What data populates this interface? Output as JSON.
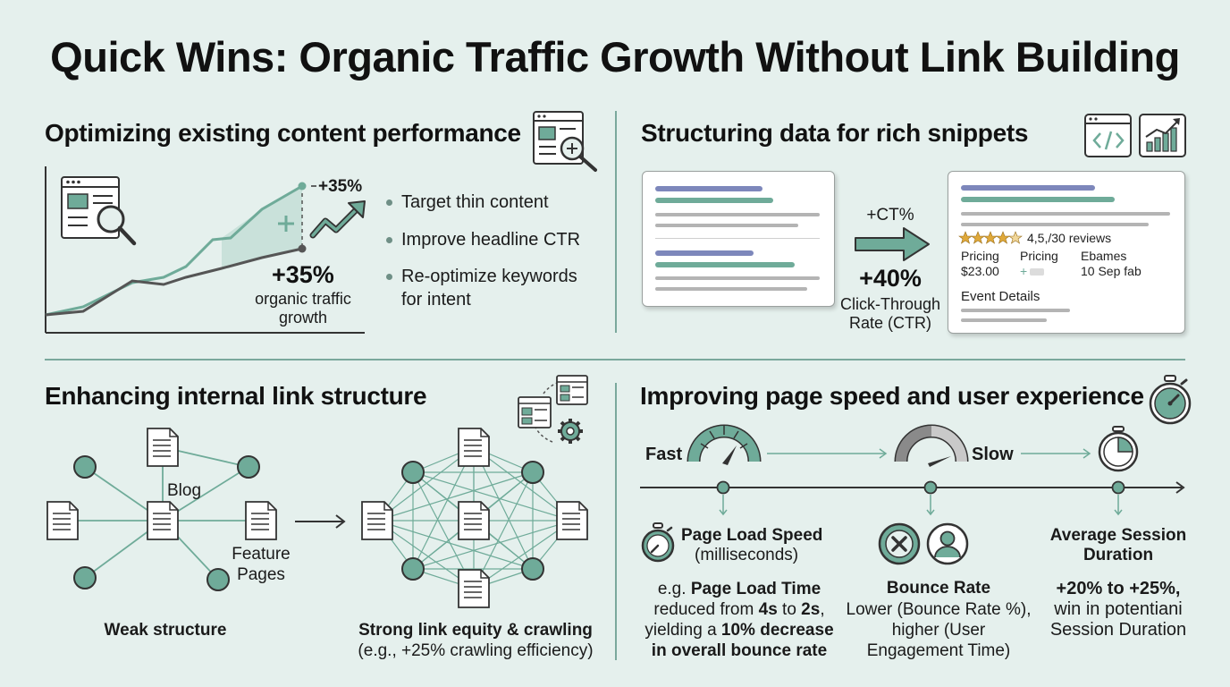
{
  "title": "Quick Wins: Organic Traffic Growth Without Link Building",
  "colors": {
    "accent": "#6fab99",
    "accent_dark": "#5c9485",
    "ink": "#3a3a3a",
    "background": "#e5f0ed"
  },
  "optimizing": {
    "heading": "Optimizing existing content performance",
    "icons": [
      "browser-magnifier-icon",
      "page-magnifier-icon",
      "trend-arrow-icon"
    ],
    "chart_tag": "+35%",
    "stat_value": "+35%",
    "stat_label_1": "organic traffic",
    "stat_label_2": "growth",
    "bullets": [
      "Target thin content",
      "Improve headline CTR",
      "Re-optimize keywords",
      "for intent"
    ]
  },
  "structuring": {
    "heading": "Structuring data for rich snippets",
    "icons": [
      "code-window-icon",
      "bar-chart-icon"
    ],
    "arrow_label": "+CT%",
    "stat_value": "+40%",
    "stat_label_1": "Click-Through",
    "stat_label_2": "Rate (CTR)",
    "rating_text": "4,5,/30 reviews",
    "col1_label": "Pricing",
    "col1_value": "$23.00",
    "col2_label": "Pricing",
    "col2_value": "+",
    "col3_label": "Ebames",
    "col3_value": "10 Sep fab",
    "event_label": "Event Details"
  },
  "internal_links": {
    "heading": "Enhancing internal link structure",
    "label_blog": "Blog",
    "label_feature_1": "Feature",
    "label_feature_2": "Pages",
    "weak_label": "Weak structure",
    "strong_label_1": "Strong link equity & crawling",
    "strong_label_2": "(e.g., +25% crawling efficiency)"
  },
  "page_speed": {
    "heading": "Improving page speed and user experience",
    "fast_label": "Fast",
    "slow_label": "Slow",
    "metric1_title": "Page Load Speed",
    "metric1_sub": "(milliseconds)",
    "metric1_line1_prefix": "e.g. ",
    "metric1_line1_bold": "Page Load Time",
    "metric1_line2_a": "reduced from ",
    "metric1_line2_b": "4s",
    "metric1_line2_c": " to ",
    "metric1_line2_d": "2s",
    "metric1_line2_e": ",",
    "metric1_line3_a": "yielding a ",
    "metric1_line3_b": "10% decrease",
    "metric1_line4": "in overall bounce rate",
    "metric2_title": "Bounce Rate",
    "metric2_line1": "Lower (Bounce Rate %),",
    "metric2_line2": "higher (User",
    "metric2_line3": "Engagement Time)",
    "metric3_title_1": "Average Session",
    "metric3_title_2": "Duration",
    "metric3_line1": "+20% to +25%,",
    "metric3_line2": "win in potentiani",
    "metric3_line3": "Session Duration"
  }
}
